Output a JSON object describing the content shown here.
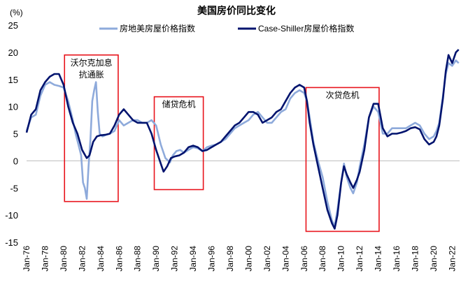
{
  "chart_data": {
    "type": "line",
    "title": "美国房价同比变化",
    "y_unit_label": "(%)",
    "ylim": [
      -15,
      25
    ],
    "yticks": [
      -15,
      -10,
      -5,
      0,
      5,
      10,
      15,
      20,
      25
    ],
    "xlim": [
      1976,
      2022.8
    ],
    "x_tick_labels": [
      "Jan-76",
      "Jan-78",
      "Jan-80",
      "Jan-82",
      "Jan-84",
      "Jan-86",
      "Jan-88",
      "Jan-90",
      "Jan-92",
      "Jan-94",
      "Jan-96",
      "Jan-98",
      "Jan-00",
      "Jan-02",
      "Jan-04",
      "Jan-06",
      "Jan-08",
      "Jan-10",
      "Jan-12",
      "Jan-14",
      "Jan-16",
      "Jan-18",
      "Jan-20",
      "Jan-22"
    ],
    "x_tick_years": [
      1976,
      1978,
      1980,
      1982,
      1984,
      1986,
      1988,
      1990,
      1992,
      1994,
      1996,
      1998,
      2000,
      2002,
      2004,
      2006,
      2008,
      2010,
      2012,
      2014,
      2016,
      2018,
      2020,
      2022
    ],
    "series": [
      {
        "name": "房地美房屋价格指数",
        "color": "#8eaadb",
        "points": [
          [
            1976.0,
            5.5
          ],
          [
            1976.5,
            8.0
          ],
          [
            1977.0,
            8.5
          ],
          [
            1977.5,
            12.0
          ],
          [
            1978.0,
            14.0
          ],
          [
            1978.5,
            14.5
          ],
          [
            1979.0,
            14.0
          ],
          [
            1979.5,
            13.8
          ],
          [
            1980.0,
            13.5
          ],
          [
            1980.5,
            11.0
          ],
          [
            1981.0,
            7.5
          ],
          [
            1981.3,
            5.0
          ],
          [
            1981.6,
            3.0
          ],
          [
            1981.9,
            1.0
          ],
          [
            1982.1,
            -4.0
          ],
          [
            1982.3,
            -5.0
          ],
          [
            1982.5,
            -7.0
          ],
          [
            1982.7,
            -1.0
          ],
          [
            1982.9,
            4.0
          ],
          [
            1983.1,
            11.0
          ],
          [
            1983.3,
            13.0
          ],
          [
            1983.5,
            14.5
          ],
          [
            1983.7,
            9.0
          ],
          [
            1983.9,
            5.0
          ],
          [
            1984.2,
            4.5
          ],
          [
            1984.6,
            4.8
          ],
          [
            1985.0,
            5.0
          ],
          [
            1985.5,
            5.5
          ],
          [
            1986.0,
            7.5
          ],
          [
            1986.5,
            6.5
          ],
          [
            1987.0,
            7.0
          ],
          [
            1987.5,
            7.5
          ],
          [
            1988.0,
            7.5
          ],
          [
            1988.5,
            7.0
          ],
          [
            1989.0,
            7.0
          ],
          [
            1989.5,
            7.5
          ],
          [
            1990.0,
            6.5
          ],
          [
            1990.5,
            3.0
          ],
          [
            1991.0,
            0.5
          ],
          [
            1991.5,
            -0.3
          ],
          [
            1991.8,
            1.0
          ],
          [
            1992.2,
            1.8
          ],
          [
            1992.6,
            2.0
          ],
          [
            1993.0,
            1.5
          ],
          [
            1993.5,
            2.0
          ],
          [
            1994.0,
            2.5
          ],
          [
            1994.5,
            2.3
          ],
          [
            1995.0,
            1.8
          ],
          [
            1995.5,
            2.5
          ],
          [
            1996.0,
            2.8
          ],
          [
            1996.5,
            3.0
          ],
          [
            1997.0,
            3.5
          ],
          [
            1997.5,
            4.0
          ],
          [
            1998.0,
            5.0
          ],
          [
            1998.5,
            6.0
          ],
          [
            1999.0,
            6.5
          ],
          [
            1999.5,
            7.0
          ],
          [
            2000.0,
            7.5
          ],
          [
            2000.5,
            8.5
          ],
          [
            2001.0,
            9.0
          ],
          [
            2001.5,
            8.0
          ],
          [
            2002.0,
            7.0
          ],
          [
            2002.5,
            7.0
          ],
          [
            2003.0,
            8.0
          ],
          [
            2003.5,
            9.0
          ],
          [
            2004.0,
            9.5
          ],
          [
            2004.5,
            11.5
          ],
          [
            2005.0,
            12.5
          ],
          [
            2005.5,
            13.0
          ],
          [
            2006.0,
            12.5
          ],
          [
            2006.3,
            11.0
          ],
          [
            2006.6,
            8.0
          ],
          [
            2007.0,
            3.5
          ],
          [
            2007.5,
            0.0
          ],
          [
            2008.0,
            -3.0
          ],
          [
            2008.5,
            -7.5
          ],
          [
            2009.0,
            -11.0
          ],
          [
            2009.3,
            -12.0
          ],
          [
            2009.6,
            -9.0
          ],
          [
            2010.0,
            -4.0
          ],
          [
            2010.3,
            -0.5
          ],
          [
            2010.6,
            -3.0
          ],
          [
            2011.0,
            -5.0
          ],
          [
            2011.3,
            -6.0
          ],
          [
            2011.7,
            -4.0
          ],
          [
            2012.0,
            -1.0
          ],
          [
            2012.5,
            3.0
          ],
          [
            2013.0,
            8.0
          ],
          [
            2013.5,
            10.0
          ],
          [
            2014.0,
            9.0
          ],
          [
            2014.5,
            5.0
          ],
          [
            2015.0,
            5.0
          ],
          [
            2015.5,
            6.0
          ],
          [
            2016.0,
            6.0
          ],
          [
            2016.5,
            6.0
          ],
          [
            2017.0,
            6.0
          ],
          [
            2017.5,
            6.5
          ],
          [
            2018.0,
            7.0
          ],
          [
            2018.5,
            6.5
          ],
          [
            2019.0,
            5.0
          ],
          [
            2019.5,
            4.0
          ],
          [
            2020.0,
            4.5
          ],
          [
            2020.3,
            5.5
          ],
          [
            2020.6,
            7.0
          ],
          [
            2021.0,
            12.0
          ],
          [
            2021.3,
            16.0
          ],
          [
            2021.6,
            18.0
          ],
          [
            2022.0,
            17.5
          ],
          [
            2022.4,
            18.5
          ],
          [
            2022.7,
            18.0
          ]
        ]
      },
      {
        "name": "Case-Shiller房屋价格指数",
        "color": "#00136e",
        "points": [
          [
            1976.0,
            5.2
          ],
          [
            1976.5,
            8.5
          ],
          [
            1977.0,
            9.5
          ],
          [
            1977.5,
            13.0
          ],
          [
            1978.0,
            14.5
          ],
          [
            1978.5,
            15.5
          ],
          [
            1979.0,
            16.0
          ],
          [
            1979.5,
            16.0
          ],
          [
            1980.0,
            14.0
          ],
          [
            1980.5,
            10.0
          ],
          [
            1981.0,
            7.0
          ],
          [
            1981.5,
            5.0
          ],
          [
            1982.0,
            2.0
          ],
          [
            1982.5,
            0.5
          ],
          [
            1982.8,
            1.0
          ],
          [
            1983.2,
            3.5
          ],
          [
            1983.6,
            4.5
          ],
          [
            1984.0,
            4.7
          ],
          [
            1984.5,
            4.8
          ],
          [
            1985.0,
            5.0
          ],
          [
            1985.5,
            6.5
          ],
          [
            1986.0,
            8.5
          ],
          [
            1986.5,
            9.5
          ],
          [
            1987.0,
            8.5
          ],
          [
            1987.5,
            7.5
          ],
          [
            1988.0,
            7.0
          ],
          [
            1988.5,
            7.0
          ],
          [
            1989.0,
            7.0
          ],
          [
            1989.5,
            5.0
          ],
          [
            1990.0,
            2.0
          ],
          [
            1990.5,
            -0.5
          ],
          [
            1990.8,
            -2.0
          ],
          [
            1991.2,
            -1.0
          ],
          [
            1991.6,
            0.5
          ],
          [
            1992.0,
            0.8
          ],
          [
            1992.5,
            1.0
          ],
          [
            1993.0,
            1.5
          ],
          [
            1993.5,
            2.5
          ],
          [
            1994.0,
            2.8
          ],
          [
            1994.5,
            2.5
          ],
          [
            1995.0,
            1.8
          ],
          [
            1995.5,
            2.0
          ],
          [
            1996.0,
            2.5
          ],
          [
            1996.5,
            3.0
          ],
          [
            1997.0,
            3.5
          ],
          [
            1997.5,
            4.5
          ],
          [
            1998.0,
            5.5
          ],
          [
            1998.5,
            6.5
          ],
          [
            1999.0,
            7.0
          ],
          [
            1999.5,
            8.0
          ],
          [
            2000.0,
            9.0
          ],
          [
            2000.5,
            9.0
          ],
          [
            2001.0,
            8.5
          ],
          [
            2001.5,
            7.0
          ],
          [
            2002.0,
            7.5
          ],
          [
            2002.5,
            8.0
          ],
          [
            2003.0,
            9.0
          ],
          [
            2003.5,
            9.5
          ],
          [
            2004.0,
            11.0
          ],
          [
            2004.5,
            12.5
          ],
          [
            2005.0,
            13.5
          ],
          [
            2005.5,
            14.0
          ],
          [
            2006.0,
            13.5
          ],
          [
            2006.3,
            11.0
          ],
          [
            2006.6,
            7.0
          ],
          [
            2007.0,
            3.0
          ],
          [
            2007.5,
            -1.0
          ],
          [
            2008.0,
            -5.0
          ],
          [
            2008.5,
            -9.0
          ],
          [
            2009.0,
            -11.5
          ],
          [
            2009.3,
            -12.5
          ],
          [
            2009.6,
            -10.0
          ],
          [
            2010.0,
            -4.0
          ],
          [
            2010.3,
            -1.0
          ],
          [
            2010.6,
            -2.5
          ],
          [
            2011.0,
            -4.0
          ],
          [
            2011.3,
            -5.0
          ],
          [
            2011.7,
            -3.5
          ],
          [
            2012.0,
            -2.0
          ],
          [
            2012.5,
            2.0
          ],
          [
            2013.0,
            8.0
          ],
          [
            2013.5,
            10.5
          ],
          [
            2014.0,
            10.5
          ],
          [
            2014.5,
            6.0
          ],
          [
            2015.0,
            4.5
          ],
          [
            2015.5,
            5.0
          ],
          [
            2016.0,
            5.0
          ],
          [
            2016.5,
            5.2
          ],
          [
            2017.0,
            5.5
          ],
          [
            2017.5,
            6.0
          ],
          [
            2018.0,
            6.2
          ],
          [
            2018.5,
            5.8
          ],
          [
            2019.0,
            4.0
          ],
          [
            2019.5,
            3.0
          ],
          [
            2020.0,
            3.5
          ],
          [
            2020.3,
            4.5
          ],
          [
            2020.6,
            6.5
          ],
          [
            2021.0,
            11.5
          ],
          [
            2021.3,
            16.5
          ],
          [
            2021.6,
            19.5
          ],
          [
            2022.0,
            18.0
          ],
          [
            2022.4,
            20.0
          ],
          [
            2022.7,
            20.5
          ]
        ]
      }
    ],
    "annotations": [
      {
        "label": "沃尔克加息\n抗通胀",
        "x0": 1980.1,
        "x1": 1985.9,
        "y0": -7.5,
        "y1": 19.5
      },
      {
        "label": "储贷危机",
        "x0": 1989.8,
        "x1": 1995.1,
        "y0": -5.3,
        "y1": 11.8
      },
      {
        "label": "次贷危机",
        "x0": 2006.2,
        "x1": 2014.1,
        "y0": -13.0,
        "y1": 13.5
      }
    ],
    "annotation_color": "#e8141c"
  }
}
